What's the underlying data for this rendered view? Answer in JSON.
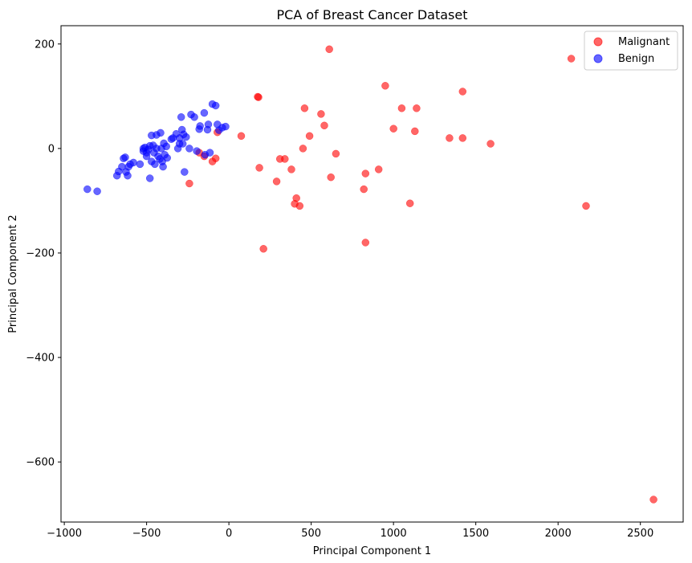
{
  "chart_data": {
    "type": "scatter",
    "title": "PCA of Breast Cancer Dataset",
    "xlabel": "Principal Component 1",
    "ylabel": "Principal Component 2",
    "xlim": [
      -1020,
      2760
    ],
    "ylim": [
      -715,
      235
    ],
    "xticks": [
      -1000,
      -500,
      0,
      500,
      1000,
      1500,
      2000,
      2500
    ],
    "yticks": [
      200,
      0,
      -200,
      -400,
      -600
    ],
    "xtick_labels": [
      "−1000",
      "−500",
      "0",
      "500",
      "1000",
      "1500",
      "2000",
      "2500"
    ],
    "ytick_labels": [
      "200",
      "0",
      "−200",
      "−400",
      "−600"
    ],
    "grid": false,
    "legend_position": "top-right",
    "series": [
      {
        "name": "Malignant",
        "color": "#ff0000",
        "points": [
          [
            2580,
            -672
          ],
          [
            2170,
            -110
          ],
          [
            2080,
            172
          ],
          [
            1590,
            9
          ],
          [
            1420,
            109
          ],
          [
            1420,
            20
          ],
          [
            1340,
            20
          ],
          [
            1140,
            77
          ],
          [
            1130,
            33
          ],
          [
            1100,
            -105
          ],
          [
            1050,
            77
          ],
          [
            1000,
            38
          ],
          [
            950,
            120
          ],
          [
            910,
            -40
          ],
          [
            830,
            -48
          ],
          [
            830,
            -180
          ],
          [
            820,
            -78
          ],
          [
            650,
            -10
          ],
          [
            620,
            -55
          ],
          [
            610,
            190
          ],
          [
            580,
            44
          ],
          [
            560,
            66
          ],
          [
            490,
            24
          ],
          [
            460,
            77
          ],
          [
            450,
            0
          ],
          [
            430,
            -110
          ],
          [
            410,
            -95
          ],
          [
            400,
            -106
          ],
          [
            380,
            -40
          ],
          [
            340,
            -20
          ],
          [
            310,
            -20
          ],
          [
            290,
            -63
          ],
          [
            210,
            -192
          ],
          [
            185,
            -37
          ],
          [
            180,
            98
          ],
          [
            175,
            99
          ],
          [
            75,
            24
          ],
          [
            -70,
            31
          ],
          [
            -80,
            -19
          ],
          [
            -100,
            -25
          ],
          [
            -150,
            -15
          ],
          [
            -180,
            -8
          ],
          [
            -240,
            -67
          ]
        ]
      },
      {
        "name": "Benign",
        "color": "#0000ff",
        "points": [
          [
            -860,
            -78
          ],
          [
            -800,
            -82
          ],
          [
            -680,
            -52
          ],
          [
            -670,
            -44
          ],
          [
            -650,
            -35
          ],
          [
            -640,
            -19
          ],
          [
            -630,
            -17
          ],
          [
            -625,
            -45
          ],
          [
            -615,
            -52
          ],
          [
            -610,
            -35
          ],
          [
            -600,
            -30
          ],
          [
            -580,
            -27
          ],
          [
            -540,
            -30
          ],
          [
            -520,
            -5
          ],
          [
            -520,
            0
          ],
          [
            -510,
            2
          ],
          [
            -500,
            -8
          ],
          [
            -500,
            -15
          ],
          [
            -490,
            -2
          ],
          [
            -480,
            5
          ],
          [
            -480,
            -57
          ],
          [
            -470,
            -25
          ],
          [
            -470,
            25
          ],
          [
            -460,
            6
          ],
          [
            -455,
            -8
          ],
          [
            -450,
            -30
          ],
          [
            -440,
            26
          ],
          [
            -440,
            0
          ],
          [
            -430,
            -15
          ],
          [
            -420,
            -20
          ],
          [
            -415,
            30
          ],
          [
            -410,
            0
          ],
          [
            -405,
            -25
          ],
          [
            -400,
            -35
          ],
          [
            -395,
            10
          ],
          [
            -390,
            -12
          ],
          [
            -380,
            4
          ],
          [
            -375,
            -18
          ],
          [
            -350,
            18
          ],
          [
            -340,
            20
          ],
          [
            -320,
            28
          ],
          [
            -310,
            0
          ],
          [
            -300,
            20
          ],
          [
            -300,
            9
          ],
          [
            -290,
            60
          ],
          [
            -285,
            36
          ],
          [
            -280,
            9
          ],
          [
            -275,
            27
          ],
          [
            -270,
            -45
          ],
          [
            -260,
            22
          ],
          [
            -240,
            0
          ],
          [
            -230,
            65
          ],
          [
            -210,
            60
          ],
          [
            -195,
            -5
          ],
          [
            -180,
            37
          ],
          [
            -175,
            43
          ],
          [
            -150,
            68
          ],
          [
            -145,
            -12
          ],
          [
            -130,
            36
          ],
          [
            -125,
            46
          ],
          [
            -115,
            -8
          ],
          [
            -100,
            85
          ],
          [
            -80,
            82
          ],
          [
            -70,
            46
          ],
          [
            -60,
            35
          ],
          [
            -40,
            40
          ],
          [
            -20,
            42
          ]
        ]
      }
    ]
  }
}
